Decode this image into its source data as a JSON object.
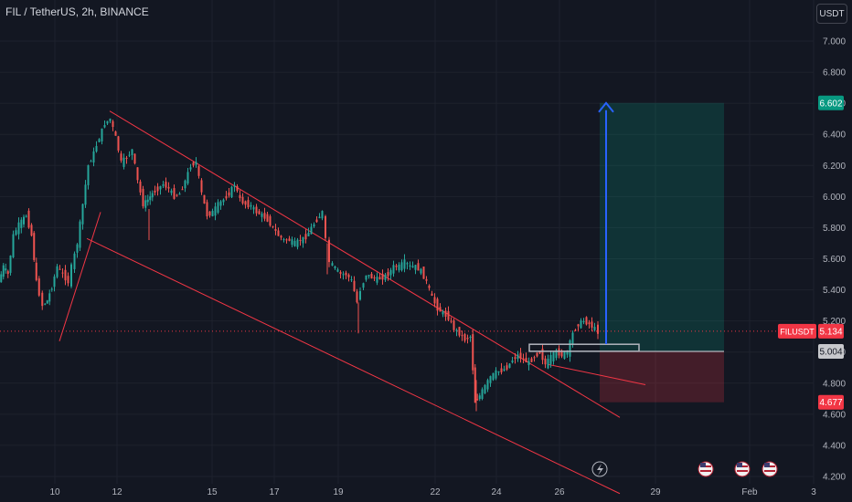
{
  "header": {
    "symbol_title": "FIL / TetherUS, 2h, BINANCE",
    "currency_button": "USDT"
  },
  "price_axis": {
    "ticks": [
      "7.000",
      "6.800",
      "6.600",
      "6.400",
      "6.200",
      "6.000",
      "5.800",
      "5.600",
      "5.400",
      "5.200",
      "5.000",
      "4.800",
      "4.600",
      "4.400",
      "4.200"
    ],
    "ticks_values": [
      7.0,
      6.8,
      6.6,
      6.4,
      6.2,
      6.0,
      5.8,
      5.6,
      5.4,
      5.2,
      5.0,
      4.8,
      4.6,
      4.4,
      4.2
    ]
  },
  "time_axis": {
    "ticks": [
      "10",
      "12",
      "15",
      "17",
      "19",
      "22",
      "24",
      "26",
      "29",
      "Feb",
      "3"
    ]
  },
  "labels": {
    "current_symbol": "FILUSDT",
    "current_price": "5.134",
    "target_price": "6.602",
    "entry_price": "5.004",
    "stop_price": "4.677"
  },
  "colors": {
    "background": "#131722",
    "grid": "#1e222d",
    "up": "#26a69a",
    "down": "#ef5350",
    "channel": "#f23645",
    "arrow": "#2962ff",
    "target_label": "#089981",
    "stop_label": "#f23645",
    "entry_label": "#787b86",
    "current_line": "#f23645"
  },
  "icons": [
    "lightning-icon",
    "us-flag-icon",
    "us-flag-icon",
    "us-flag-icon"
  ],
  "chart_data": {
    "type": "candlestick",
    "title": "FIL / TetherUS, 2h, BINANCE",
    "ylim": [
      4.2,
      7.0
    ],
    "x_ticks": [
      "10",
      "12",
      "15",
      "17",
      "19",
      "22",
      "24",
      "26",
      "29",
      "Feb",
      "3"
    ],
    "series": [
      {
        "name": "FILUSDT",
        "path": [
          [
            0,
            5.45
          ],
          [
            5,
            5.55
          ],
          [
            10,
            5.5
          ],
          [
            16,
            5.75
          ],
          [
            22,
            5.82
          ],
          [
            30,
            5.88
          ],
          [
            36,
            5.75
          ],
          [
            41,
            5.45
          ],
          [
            48,
            5.3
          ],
          [
            53,
            5.33
          ],
          [
            58,
            5.42
          ],
          [
            64,
            5.55
          ],
          [
            70,
            5.5
          ],
          [
            76,
            5.45
          ],
          [
            80,
            5.55
          ],
          [
            86,
            5.7
          ],
          [
            92,
            5.95
          ],
          [
            98,
            6.2
          ],
          [
            104,
            6.28
          ],
          [
            110,
            6.38
          ],
          [
            116,
            6.47
          ],
          [
            122,
            6.5
          ],
          [
            128,
            6.38
          ],
          [
            134,
            6.22
          ],
          [
            140,
            6.25
          ],
          [
            146,
            6.3
          ],
          [
            152,
            6.1
          ],
          [
            158,
            5.95
          ],
          [
            163,
            5.98
          ],
          [
            168,
            6.02
          ],
          [
            174,
            6.05
          ],
          [
            180,
            6.08
          ],
          [
            186,
            6.05
          ],
          [
            192,
            6.0
          ],
          [
            198,
            6.02
          ],
          [
            204,
            6.1
          ],
          [
            210,
            6.2
          ],
          [
            216,
            6.22
          ],
          [
            222,
            6.02
          ],
          [
            228,
            5.88
          ],
          [
            234,
            5.9
          ],
          [
            240,
            5.95
          ],
          [
            246,
            5.98
          ],
          [
            252,
            6.02
          ],
          [
            258,
            6.08
          ],
          [
            264,
            5.98
          ],
          [
            270,
            5.95
          ],
          [
            276,
            5.94
          ],
          [
            282,
            5.9
          ],
          [
            288,
            5.88
          ],
          [
            294,
            5.85
          ],
          [
            300,
            5.8
          ],
          [
            306,
            5.75
          ],
          [
            312,
            5.72
          ],
          [
            318,
            5.72
          ],
          [
            324,
            5.7
          ],
          [
            330,
            5.72
          ],
          [
            336,
            5.74
          ],
          [
            342,
            5.8
          ],
          [
            348,
            5.85
          ],
          [
            354,
            5.9
          ],
          [
            358,
            5.72
          ],
          [
            362,
            5.58
          ],
          [
            368,
            5.54
          ],
          [
            374,
            5.5
          ],
          [
            380,
            5.5
          ],
          [
            386,
            5.46
          ],
          [
            392,
            5.32
          ],
          [
            396,
            5.4
          ],
          [
            402,
            5.5
          ],
          [
            408,
            5.48
          ],
          [
            414,
            5.47
          ],
          [
            420,
            5.48
          ],
          [
            426,
            5.5
          ],
          [
            432,
            5.55
          ],
          [
            438,
            5.55
          ],
          [
            444,
            5.58
          ],
          [
            450,
            5.55
          ],
          [
            456,
            5.55
          ],
          [
            462,
            5.52
          ],
          [
            468,
            5.45
          ],
          [
            474,
            5.35
          ],
          [
            480,
            5.28
          ],
          [
            486,
            5.25
          ],
          [
            492,
            5.22
          ],
          [
            498,
            5.15
          ],
          [
            504,
            5.12
          ],
          [
            510,
            5.08
          ],
          [
            516,
            5.1
          ],
          [
            521,
            4.68
          ],
          [
            526,
            4.72
          ],
          [
            532,
            4.78
          ],
          [
            538,
            4.84
          ],
          [
            544,
            4.87
          ],
          [
            550,
            4.88
          ],
          [
            556,
            4.9
          ],
          [
            562,
            4.95
          ],
          [
            568,
            4.98
          ],
          [
            574,
            4.95
          ],
          [
            580,
            4.93
          ],
          [
            586,
            4.97
          ],
          [
            592,
            5.0
          ],
          [
            598,
            4.92
          ],
          [
            604,
            4.97
          ],
          [
            610,
            5.0
          ],
          [
            616,
            4.98
          ],
          [
            622,
            5.0
          ],
          [
            628,
            5.12
          ],
          [
            634,
            5.18
          ],
          [
            640,
            5.2
          ],
          [
            646,
            5.18
          ],
          [
            652,
            5.15
          ],
          [
            656,
            5.13
          ]
        ]
      }
    ],
    "annotations": [
      {
        "type": "channel_line_upper",
        "from": [
          120,
          6.55
        ],
        "to": [
          678,
          4.58
        ]
      },
      {
        "type": "channel_line_lower",
        "from": [
          95,
          5.73
        ],
        "to": [
          678,
          4.09
        ]
      },
      {
        "type": "upper_line_extension",
        "from": [
          600,
          4.92
        ],
        "to": [
          706,
          4.79
        ]
      },
      {
        "type": "support_trendline",
        "from": [
          65,
          5.07
        ],
        "to": [
          110,
          5.9
        ]
      },
      {
        "type": "long_position",
        "entry": 5.004,
        "target": 6.602,
        "stop": 4.677,
        "x_start": 656,
        "x_end": 792
      },
      {
        "type": "rectangle",
        "x1": 579,
        "x2": 699,
        "y_top": 5.05,
        "y_bottom": 5.005
      }
    ]
  }
}
